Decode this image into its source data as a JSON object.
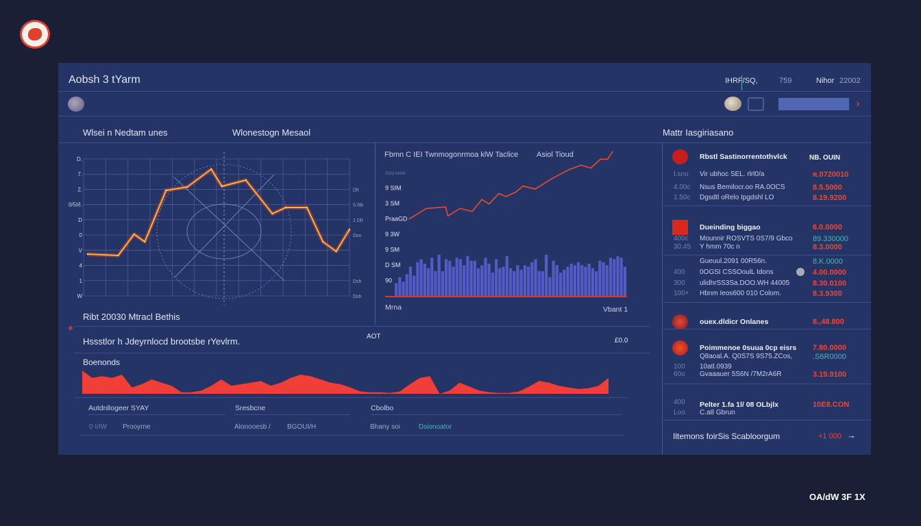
{
  "window": {
    "title": "Aobsh 3 tYarm",
    "logo_icon": "red-brand-logo",
    "footer_brand": "OA/dW 3F 1X"
  },
  "header": {
    "stat_a": "IHRF/SQ,",
    "stat_b": "759",
    "stat_c_label": "Nihor",
    "stat_c_value": "22002",
    "next_icon": "chevron-right-icon"
  },
  "sections": {
    "left_title": "Wlsei n Nedtam unes",
    "middle_title": "Wlonestogn Mesaol",
    "right_title": "Mattr Iasgiriasano"
  },
  "left_chart": {
    "footer": "Ribt 20030 Mtracl Bethis"
  },
  "middle_chart": {
    "title": "Fbmn C IEI Twnmogonrmoa klW Taclice",
    "legend": "Asiol Tioud",
    "x_start": "Mrna",
    "x_end": "Vbant 1"
  },
  "summary": {
    "text": "Hssstlor h Jdeyrnlocd brootsbe rYevlrm.",
    "mid": "AOT",
    "right": "£0.0",
    "area_title": "Boenonds"
  },
  "table": {
    "headers": [
      "Autdnllogeer SYAY",
      "Sresbcne",
      "Cbolbo"
    ],
    "row": [
      "0 I/IW",
      "Prooyrne",
      "Alonooesb /",
      "BGOUI/H",
      "Bhany soi",
      "Dsionoator"
    ]
  },
  "sidebar": {
    "groups": [
      {
        "icon": "red-circle-icon",
        "title": "Rbstl Sastinorrentothvlck",
        "badge": "NB. OUIN",
        "rows": [
          {
            "left": "I.sno",
            "text": "Vir ubhoc SEL. rlrl0/a",
            "value": "ʀ.0720010"
          },
          {
            "left": "4.00c",
            "text": "Nsus Bemilocr.oo RA.0OCS",
            "value": "8.5.5000"
          },
          {
            "left": "1.50c",
            "text": "Dgsdtl oRelo Ipgdshl LO",
            "value": "8.19.9200"
          }
        ]
      },
      {
        "icon": "red-square-icon",
        "title": "Dueinding biggao",
        "value": "6.0.0000",
        "rows": [
          {
            "left": "400c",
            "text": "Mounnir ROSVTS 0S7/9 Gbco",
            "value": "89.330000",
            "teal": true
          },
          {
            "left": "30.45",
            "text": "Y hmm 70c n",
            "value": "8.3.0000"
          }
        ]
      },
      {
        "icon": "",
        "title": "",
        "rows": [
          {
            "left": "",
            "text": "Gueuul.2091 00R56n.",
            "value": "8.K.0000",
            "teal": true
          },
          {
            "left": "400",
            "text": "0OGSI CSSOoulL Idons",
            "value": "4.00.0000"
          },
          {
            "left": "300",
            "text": "ulidhrSS3Sa.DOO.WH 44005",
            "value": "8.30.0100"
          },
          {
            "left": "100+",
            "text": "Hbnm Ieos600 010 Colom.",
            "value": "8.3.9300"
          }
        ]
      },
      {
        "icon": "red-globe-icon",
        "title": "ouex.dldicr Onlanes",
        "value": "8.,48.800"
      },
      {
        "icon": "red-flame-icon",
        "title": "Poimmenoe 0suua 0cp eisrs",
        "value": "7.80.0000",
        "rows": [
          {
            "left": "",
            "text": "Q8aoal.A. Q0S7S 9S75.ZCos,",
            "value": ".S6R0000",
            "teal": true
          },
          {
            "left": "100",
            "text": "10atl.0939",
            "value": ""
          },
          {
            "left": "60o",
            "text": "Gvaaauer 5S6N /7M2rA6R",
            "value": "3.19.9100"
          }
        ]
      },
      {
        "icon": "",
        "title": "Pelter 1.fa 1l/ 08 OLbjlx",
        "value": "10E8.CON",
        "rows": [
          {
            "left": "400",
            "text": "",
            "value": ""
          },
          {
            "left": "Loo.",
            "text": "C.a8 Gbrun",
            "value": ""
          }
        ]
      }
    ],
    "footer_text": "Iltemons foirSis Scabloorgum",
    "footer_value": "+1 000",
    "footer_icon": "arrow-right-icon"
  },
  "colors": {
    "background": "#1a1f36",
    "panel": "#253466",
    "accent": "#f2452f",
    "bar": "#5a5fcf",
    "teal": "#4fb3b8"
  },
  "chart_data": [
    {
      "type": "line",
      "title": "",
      "xlim": [
        0,
        100
      ],
      "ylim": [
        0,
        10
      ],
      "grid": true,
      "y_ticks_left": [
        "D.",
        "7.",
        "2.",
        "0/5I/I.",
        "D",
        "0",
        "V",
        "4",
        "1",
        "W"
      ],
      "y_ticks_right": [
        "",
        "",
        "Dlt",
        "5.0ib",
        "1 Dlt",
        "Dsn",
        "",
        "",
        "Dsh",
        "Dsh"
      ],
      "series": [
        {
          "x": [
            1.5,
            13,
            19,
            23,
            31,
            39,
            48,
            52,
            61,
            71,
            76,
            84,
            90,
            95,
            100
          ],
          "values": [
            3.05,
            2.95,
            4.5,
            3.95,
            7.7,
            7.95,
            9.25,
            8.0,
            8.45,
            6.0,
            6.45,
            6.45,
            3.95,
            3.25,
            4.85
          ]
        }
      ]
    },
    {
      "type": "line+bar",
      "xlim": [
        0,
        100
      ],
      "ylim": [
        0,
        100
      ],
      "y_ticks": [
        "2003 MAW",
        "9 SIM",
        "3 SM",
        "PraaGD",
        "9 3W",
        "9 SM",
        "D SM",
        "90"
      ],
      "line": {
        "x": [
          10,
          17,
          25,
          26,
          31,
          36,
          40,
          43,
          47,
          50,
          54,
          57,
          62,
          69,
          76,
          81,
          85,
          89,
          92,
          94
        ],
        "values": [
          52,
          59,
          60,
          54,
          59,
          57,
          65,
          62,
          69,
          67,
          70,
          74,
          72,
          79,
          85,
          88,
          86,
          92,
          92,
          97
        ]
      },
      "bars": [
        9,
        13,
        10,
        15,
        20,
        14,
        23,
        25,
        22,
        19,
        26,
        17,
        28,
        17,
        25,
        24,
        20,
        26,
        25,
        21,
        27,
        24,
        24,
        19,
        21,
        26,
        22,
        16,
        25,
        19,
        20,
        27,
        19,
        17,
        21,
        18,
        21,
        20,
        23,
        25,
        17,
        17,
        28,
        13,
        24,
        21,
        16,
        18,
        20,
        22,
        21,
        23,
        21,
        20,
        22,
        19,
        17,
        24,
        23,
        21,
        26,
        25,
        27,
        26,
        20
      ]
    },
    {
      "type": "area",
      "ylim": [
        0,
        30
      ],
      "values": [
        29,
        20,
        22,
        20,
        24,
        8,
        12,
        18,
        14,
        10,
        2,
        2,
        4,
        10,
        18,
        10,
        12,
        14,
        16,
        10,
        14,
        20,
        24,
        22,
        18,
        14,
        12,
        8,
        3,
        2,
        2,
        1,
        3,
        12,
        20,
        22,
        0,
        4,
        14,
        9,
        4,
        2,
        1,
        1,
        3,
        9,
        16,
        14,
        10,
        8,
        6,
        7,
        10,
        20
      ]
    }
  ]
}
